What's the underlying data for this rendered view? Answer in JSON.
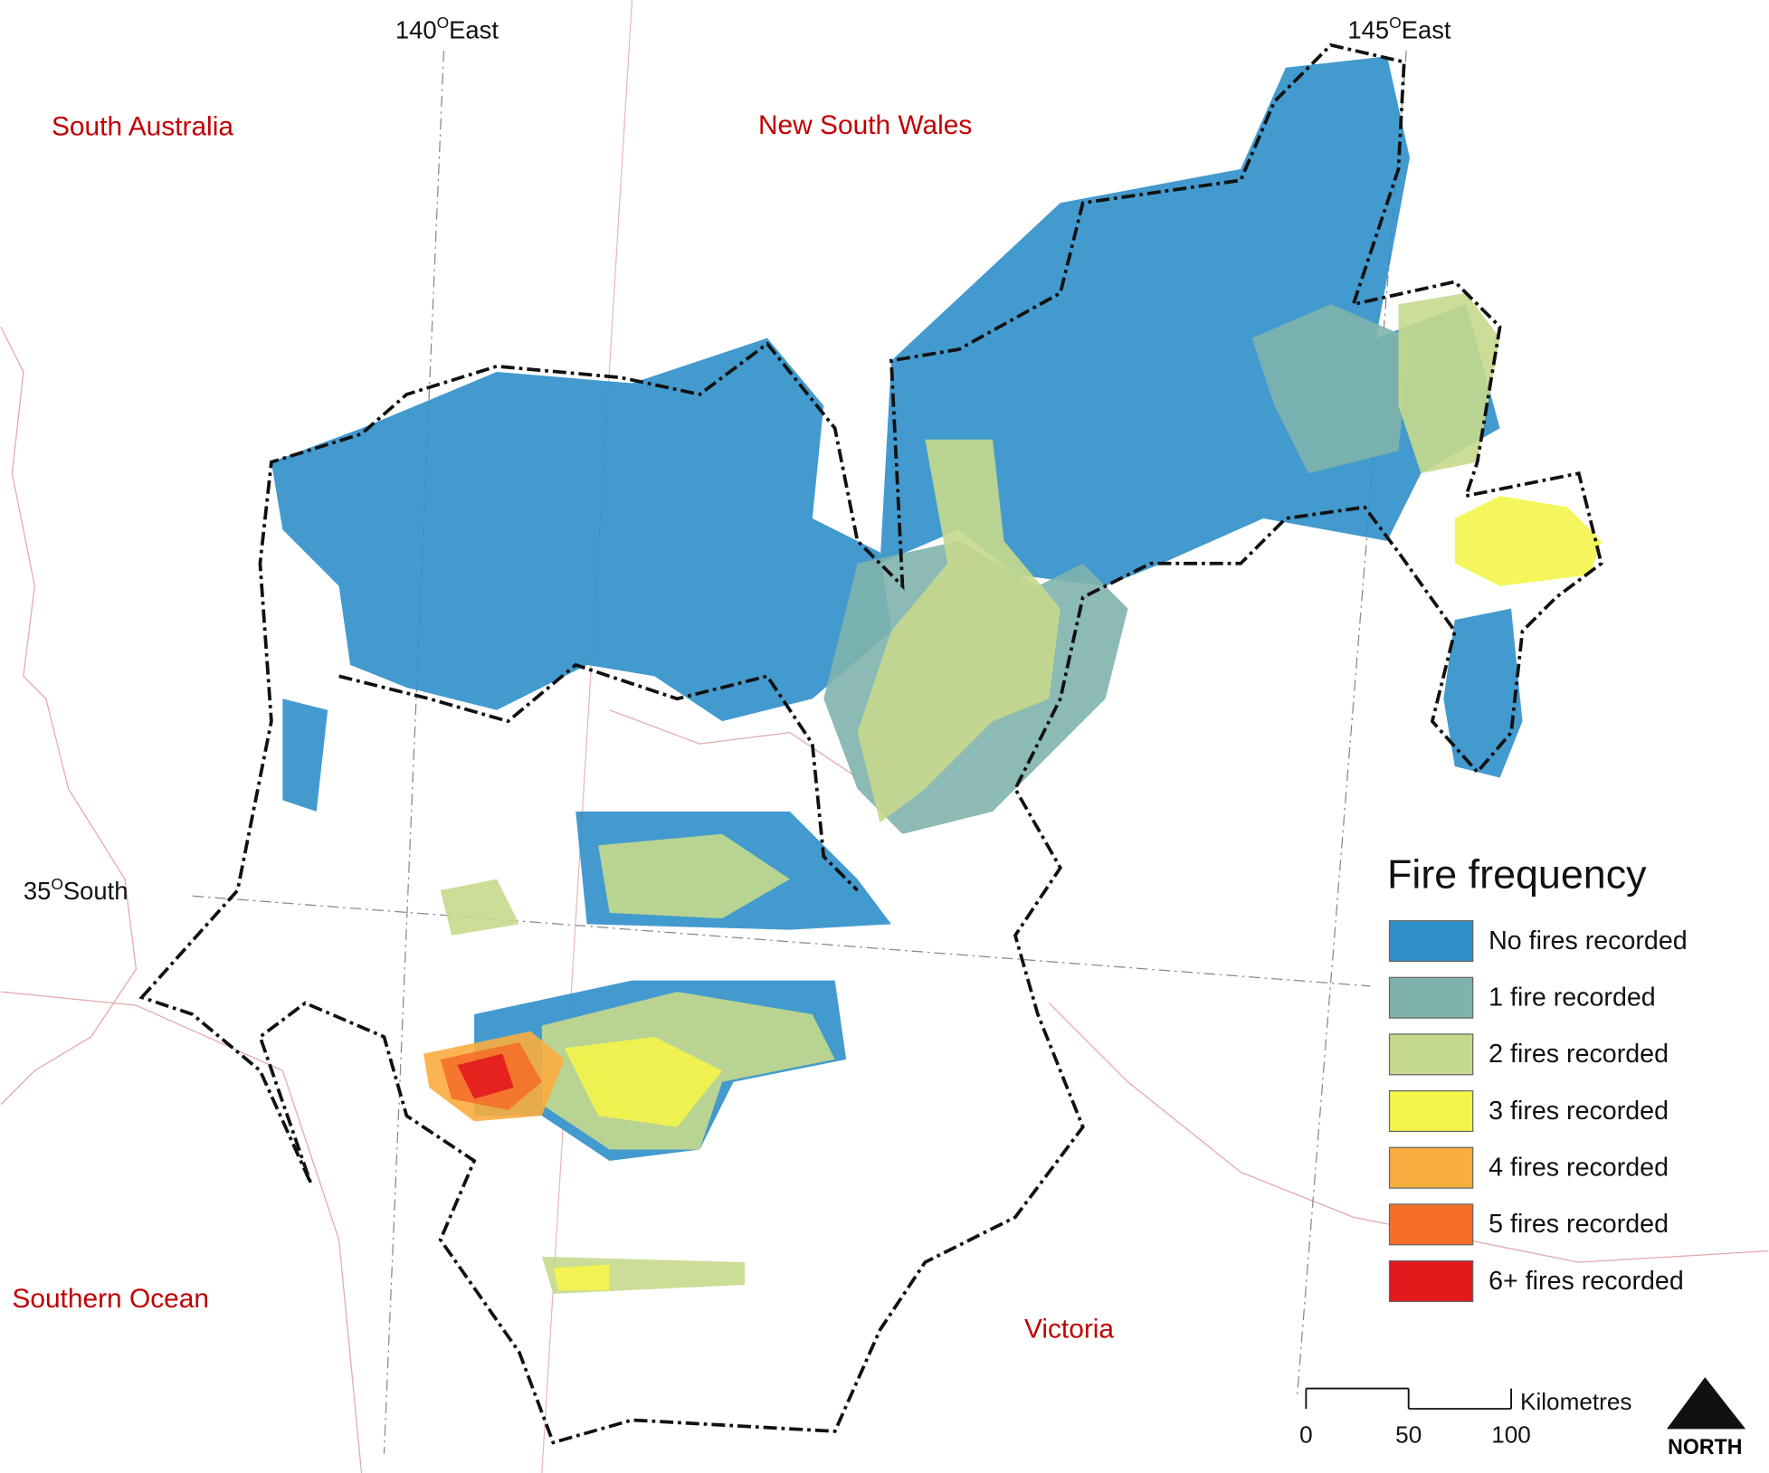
{
  "regions": [
    "South Australia",
    "New South Wales",
    "Southern Ocean",
    "Victoria"
  ],
  "graticule": {
    "longitude_1": {
      "number": "140",
      "degree": "O",
      "direction": "East"
    },
    "longitude_2": {
      "number": "145",
      "degree": "O",
      "direction": "East"
    },
    "latitude": {
      "number": "35",
      "degree": "O",
      "direction": "South"
    }
  },
  "legend": {
    "title": "Fire frequency",
    "items": [
      {
        "label": "No fires recorded",
        "color": "#2f8fc9"
      },
      {
        "label": "1 fire recorded",
        "color": "#7fb2ad"
      },
      {
        "label": "2 fires recorded",
        "color": "#c5d98c"
      },
      {
        "label": "3 fires recorded",
        "color": "#f4f54a"
      },
      {
        "label": "4 fires recorded",
        "color": "#f9ad3f"
      },
      {
        "label": "5 fires recorded",
        "color": "#f56f2a"
      },
      {
        "label": "6+ fires recorded",
        "color": "#e3191c"
      }
    ]
  },
  "scale_bar": {
    "ticks": [
      0,
      50,
      100
    ],
    "unit": "Kilometres"
  },
  "north_arrow": "NORTH"
}
